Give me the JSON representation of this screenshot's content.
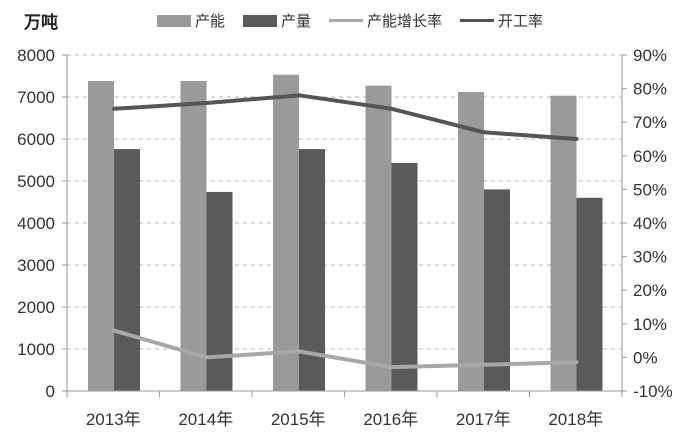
{
  "unit_label": "万吨",
  "legend": [
    {
      "label": "产能",
      "type": "bar",
      "color": "#9a9a9a"
    },
    {
      "label": "产量",
      "type": "bar",
      "color": "#5a5a5a"
    },
    {
      "label": "产能增长率",
      "type": "line",
      "color": "#a8a8a8"
    },
    {
      "label": "开工率",
      "type": "line",
      "color": "#555555"
    }
  ],
  "chart_data": {
    "type": "bar",
    "title": "",
    "categories": [
      "2013年",
      "2014年",
      "2015年",
      "2016年",
      "2017年",
      "2018年"
    ],
    "series": [
      {
        "name": "产能",
        "type": "bar",
        "axis": "left",
        "color": "#9a9a9a",
        "values": [
          7380,
          7380,
          7530,
          7270,
          7120,
          7030
        ]
      },
      {
        "name": "产量",
        "type": "bar",
        "axis": "left",
        "color": "#5a5a5a",
        "values": [
          5760,
          4740,
          5760,
          5430,
          4800,
          4600
        ]
      },
      {
        "name": "产能增长率",
        "type": "line",
        "axis": "right",
        "color": "#a8a8a8",
        "values": [
          8.0,
          0.0,
          1.8,
          -2.9,
          -2.2,
          -1.4
        ]
      },
      {
        "name": "开工率",
        "type": "line",
        "axis": "right",
        "color": "#555555",
        "values": [
          74,
          75.7,
          78,
          74,
          67,
          65
        ]
      }
    ],
    "ylabel": "万吨",
    "ylim": [
      0,
      8000
    ],
    "yticks": [
      "0",
      "1000",
      "2000",
      "3000",
      "4000",
      "5000",
      "6000",
      "7000",
      "8000"
    ],
    "y2lim": [
      -10,
      90
    ],
    "y2ticks": [
      "-10%",
      "0%",
      "10%",
      "20%",
      "30%",
      "40%",
      "50%",
      "60%",
      "70%",
      "80%",
      "90%"
    ],
    "grid": "dashed-horizontal",
    "legend_position": "top"
  }
}
